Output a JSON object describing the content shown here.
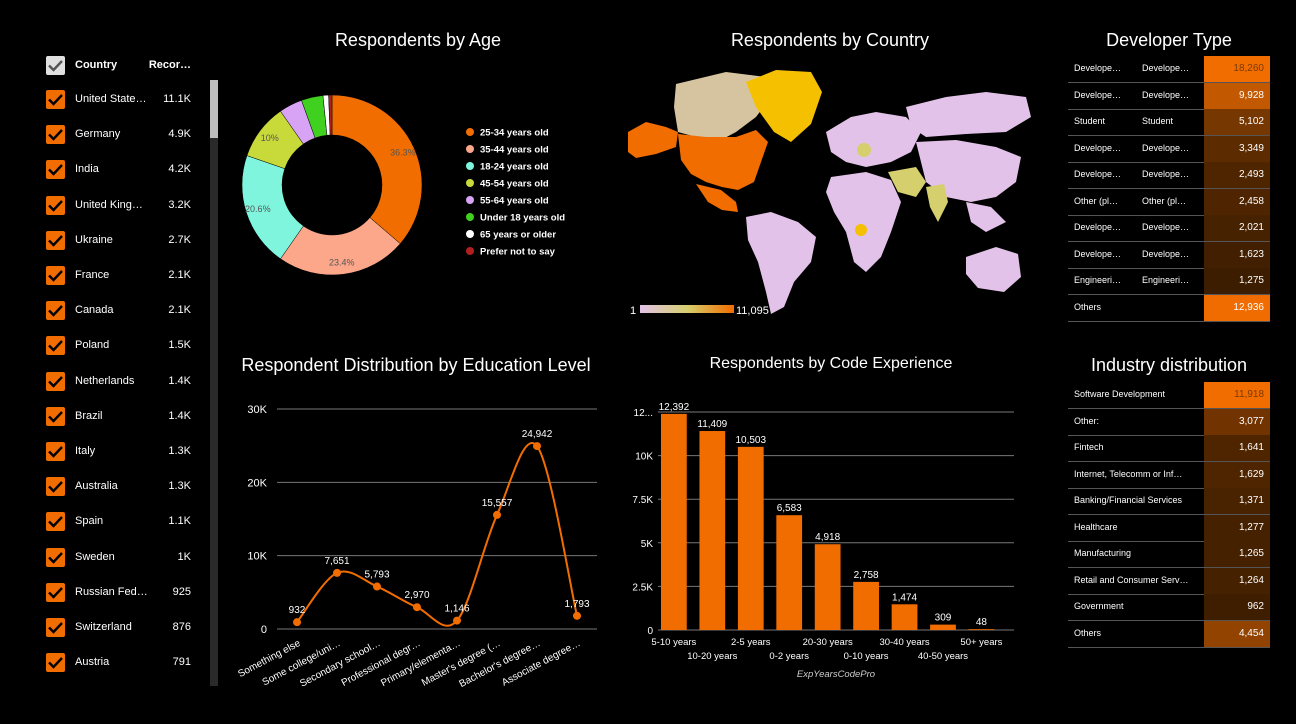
{
  "filter": {
    "header_country": "Country",
    "header_records": "Recor…",
    "rows": [
      {
        "country": "United State…",
        "count": "11.1K"
      },
      {
        "country": "Germany",
        "count": "4.9K"
      },
      {
        "country": "India",
        "count": "4.2K"
      },
      {
        "country": "United King…",
        "count": "3.2K"
      },
      {
        "country": "Ukraine",
        "count": "2.7K"
      },
      {
        "country": "France",
        "count": "2.1K"
      },
      {
        "country": "Canada",
        "count": "2.1K"
      },
      {
        "country": "Poland",
        "count": "1.5K"
      },
      {
        "country": "Netherlands",
        "count": "1.4K"
      },
      {
        "country": "Brazil",
        "count": "1.4K"
      },
      {
        "country": "Italy",
        "count": "1.3K"
      },
      {
        "country": "Australia",
        "count": "1.3K"
      },
      {
        "country": "Spain",
        "count": "1.1K"
      },
      {
        "country": "Sweden",
        "count": "1K"
      },
      {
        "country": "Russian Fed…",
        "count": "925"
      },
      {
        "country": "Switzerland",
        "count": "876"
      },
      {
        "country": "Austria",
        "count": "791"
      }
    ]
  },
  "colors": {
    "accent": "#f26d00",
    "background": "#000000",
    "grid": "#777777"
  },
  "chart_data": [
    {
      "type": "pie",
      "title": "Respondents by Age",
      "categories": [
        "25-34 years old",
        "35-44 years old",
        "18-24 years old",
        "45-54 years old",
        "55-64 years old",
        "Under 18 years old",
        "65 years or older",
        "Prefer not to say"
      ],
      "values": [
        36.3,
        23.4,
        20.6,
        10,
        4.2,
        3.9,
        1.0,
        0.6
      ],
      "labels": [
        "36.3%",
        "23.4%",
        "20.6%",
        "10%",
        "",
        "",
        "",
        ""
      ],
      "colors": [
        "#f26d00",
        "#fca68a",
        "#7ff5dd",
        "#c8da3a",
        "#d8a3f5",
        "#40d020",
        "#ffffff",
        "#b21f1f"
      ],
      "legend": "right"
    },
    {
      "type": "map",
      "title": "Respondents by Country",
      "scale_min": "1",
      "scale_max": "11,095"
    },
    {
      "type": "table",
      "title": "Developer Type",
      "rows": [
        {
          "c1": "Develope…",
          "c2": "Develope…",
          "value": 18260,
          "label": "18,260"
        },
        {
          "c1": "Develope…",
          "c2": "Develope…",
          "value": 9928,
          "label": "9,928"
        },
        {
          "c1": "Student",
          "c2": "Student",
          "value": 5102,
          "label": "5,102"
        },
        {
          "c1": "Develope…",
          "c2": "Develope…",
          "value": 3349,
          "label": "3,349"
        },
        {
          "c1": "Develope…",
          "c2": "Develope…",
          "value": 2493,
          "label": "2,493"
        },
        {
          "c1": "Other (pl…",
          "c2": "Other (pl…",
          "value": 2458,
          "label": "2,458"
        },
        {
          "c1": "Develope…",
          "c2": "Develope…",
          "value": 2021,
          "label": "2,021"
        },
        {
          "c1": "Develope…",
          "c2": "Develope…",
          "value": 1623,
          "label": "1,623"
        },
        {
          "c1": "Engineeri…",
          "c2": "Engineeri…",
          "value": 1275,
          "label": "1,275"
        },
        {
          "c1": "Others",
          "c2": "",
          "value": 12936,
          "label": "12,936"
        }
      ]
    },
    {
      "type": "line",
      "title": "Respondent Distribution by Education Level",
      "categories": [
        "Something else",
        "Some college/uni…",
        "Secondary school…",
        "Professional degr…",
        "Primary/elementa…",
        "Master's degree (…",
        "Bachelor's degree…",
        "Associate degree…"
      ],
      "values": [
        932,
        7651,
        5793,
        2970,
        1146,
        15557,
        24942,
        1793
      ],
      "value_labels": [
        "932",
        "7,651",
        "5,793",
        "2,970",
        "1,146",
        "15,557",
        "24,942",
        "1,793"
      ],
      "yticks": [
        "0",
        "10K",
        "20K",
        "30K"
      ],
      "ylim": [
        0,
        30000
      ]
    },
    {
      "type": "bar",
      "title": "Respondents by Code Experience",
      "xlabel": "ExpYearsCodePro",
      "categories": [
        "5-10 years",
        "10-20 years",
        "2-5 years",
        "0-2 years",
        "20-30 years",
        "0-10 years",
        "30-40 years",
        "40-50 years",
        "50+ years"
      ],
      "values": [
        12392,
        11409,
        10503,
        6583,
        4918,
        2758,
        1474,
        309,
        48
      ],
      "value_labels": [
        "12,392",
        "11,409",
        "10,503",
        "6,583",
        "4,918",
        "2,758",
        "1,474",
        "309",
        "48"
      ],
      "yticks": [
        "0",
        "2.5K",
        "5K",
        "7.5K",
        "10K",
        "12..."
      ],
      "ylim": [
        0,
        12500
      ]
    },
    {
      "type": "table",
      "title": "Industry distribution",
      "rows": [
        {
          "c1": "Software Development",
          "value": 11918,
          "label": "11,918"
        },
        {
          "c1": "Other:",
          "value": 3077,
          "label": "3,077"
        },
        {
          "c1": "Fintech",
          "value": 1641,
          "label": "1,641"
        },
        {
          "c1": "Internet, Telecomm or Inf…",
          "value": 1629,
          "label": "1,629"
        },
        {
          "c1": "Banking/Financial Services",
          "value": 1371,
          "label": "1,371"
        },
        {
          "c1": "Healthcare",
          "value": 1277,
          "label": "1,277"
        },
        {
          "c1": "Manufacturing",
          "value": 1265,
          "label": "1,265"
        },
        {
          "c1": "Retail and Consumer Serv…",
          "value": 1264,
          "label": "1,264"
        },
        {
          "c1": "Government",
          "value": 962,
          "label": "962"
        },
        {
          "c1": "Others",
          "value": 4454,
          "label": "4,454"
        }
      ]
    }
  ]
}
